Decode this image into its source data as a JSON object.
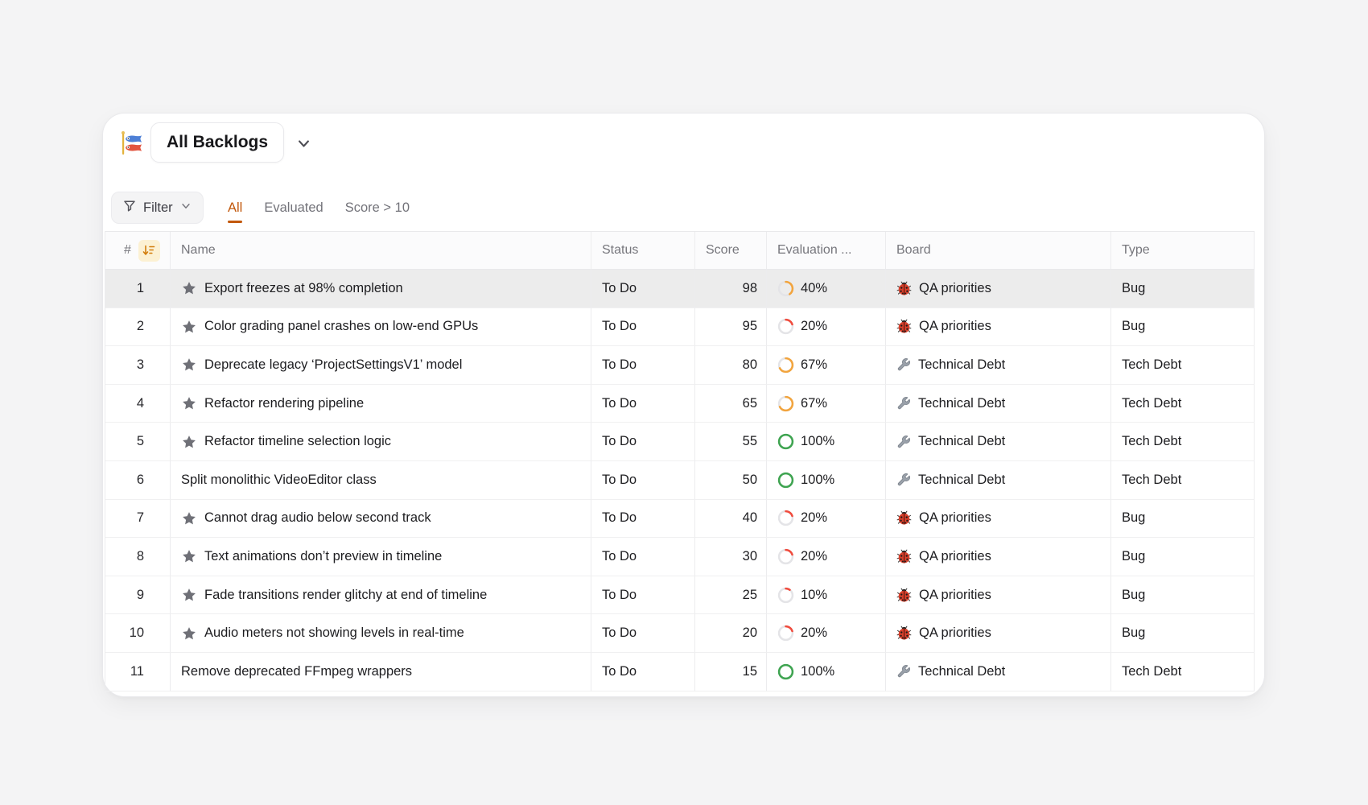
{
  "header": {
    "icon": "carp-streamer-icon",
    "title": "All Backlogs"
  },
  "filter_bar": {
    "filter_label": "Filter",
    "tabs": [
      {
        "label": "All",
        "active": true
      },
      {
        "label": "Evaluated",
        "active": false
      },
      {
        "label": "Score > 10",
        "active": false
      }
    ]
  },
  "table": {
    "columns": [
      {
        "label": "#",
        "sort_icon": "sort-descending-icon"
      },
      {
        "label": "Name"
      },
      {
        "label": "Status"
      },
      {
        "label": "Score"
      },
      {
        "label": "Evaluation ..."
      },
      {
        "label": "Board"
      },
      {
        "label": "Type"
      }
    ],
    "rows": [
      {
        "num": 1,
        "starred": true,
        "name": "Export freezes at 98% completion",
        "status": "To Do",
        "score": 98,
        "evaluation_pct": 40,
        "eval_color": "#F2A43D",
        "board": {
          "icon": "ladybug-icon",
          "label": "QA priorities"
        },
        "type": "Bug",
        "highlighted": true
      },
      {
        "num": 2,
        "starred": true,
        "name": "Color grading panel crashes on low-end GPUs",
        "status": "To Do",
        "score": 95,
        "evaluation_pct": 20,
        "eval_color": "#F04B3D",
        "board": {
          "icon": "ladybug-icon",
          "label": "QA priorities"
        },
        "type": "Bug",
        "highlighted": false
      },
      {
        "num": 3,
        "starred": true,
        "name": "Deprecate legacy ‘ProjectSettingsV1’ model",
        "status": "To Do",
        "score": 80,
        "evaluation_pct": 67,
        "eval_color": "#F2A43D",
        "board": {
          "icon": "wrench-icon",
          "label": "Technical Debt"
        },
        "type": "Tech Debt",
        "highlighted": false
      },
      {
        "num": 4,
        "starred": true,
        "name": "Refactor rendering pipeline",
        "status": "To Do",
        "score": 65,
        "evaluation_pct": 67,
        "eval_color": "#F2A43D",
        "board": {
          "icon": "wrench-icon",
          "label": "Technical Debt"
        },
        "type": "Tech Debt",
        "highlighted": false
      },
      {
        "num": 5,
        "starred": true,
        "name": "Refactor timeline selection logic",
        "status": "To Do",
        "score": 55,
        "evaluation_pct": 100,
        "eval_color": "#3EA450",
        "board": {
          "icon": "wrench-icon",
          "label": "Technical Debt"
        },
        "type": "Tech Debt",
        "highlighted": false
      },
      {
        "num": 6,
        "starred": false,
        "name": "Split monolithic VideoEditor class",
        "status": "To Do",
        "score": 50,
        "evaluation_pct": 100,
        "eval_color": "#3EA450",
        "board": {
          "icon": "wrench-icon",
          "label": "Technical Debt"
        },
        "type": "Tech Debt",
        "highlighted": false
      },
      {
        "num": 7,
        "starred": true,
        "name": "Cannot drag audio below second track",
        "status": "To Do",
        "score": 40,
        "evaluation_pct": 20,
        "eval_color": "#F04B3D",
        "board": {
          "icon": "ladybug-icon",
          "label": "QA priorities"
        },
        "type": "Bug",
        "highlighted": false
      },
      {
        "num": 8,
        "starred": true,
        "name": "Text animations don’t preview in timeline",
        "status": "To Do",
        "score": 30,
        "evaluation_pct": 20,
        "eval_color": "#F04B3D",
        "board": {
          "icon": "ladybug-icon",
          "label": "QA priorities"
        },
        "type": "Bug",
        "highlighted": false
      },
      {
        "num": 9,
        "starred": true,
        "name": "Fade transitions render glitchy at end of timeline",
        "status": "To Do",
        "score": 25,
        "evaluation_pct": 10,
        "eval_color": "#F04B3D",
        "board": {
          "icon": "ladybug-icon",
          "label": "QA priorities"
        },
        "type": "Bug",
        "highlighted": false
      },
      {
        "num": 10,
        "starred": true,
        "name": "Audio meters not showing levels in real-time",
        "status": "To Do",
        "score": 20,
        "evaluation_pct": 20,
        "eval_color": "#F04B3D",
        "board": {
          "icon": "ladybug-icon",
          "label": "QA priorities"
        },
        "type": "Bug",
        "highlighted": false
      },
      {
        "num": 11,
        "starred": false,
        "name": "Remove deprecated FFmpeg wrappers",
        "status": "To Do",
        "score": 15,
        "evaluation_pct": 100,
        "eval_color": "#3EA450",
        "board": {
          "icon": "wrench-icon",
          "label": "Technical Debt"
        },
        "type": "Tech Debt",
        "highlighted": false
      }
    ]
  },
  "colors": {
    "page_background": "#F4F4F5",
    "card_background": "#FFFFFF",
    "row_highlight": "#ECECEC",
    "tab_active": "#C2580C",
    "eval_orange": "#F2A43D",
    "eval_red": "#F04B3D",
    "eval_green": "#3EA450",
    "eval_track": "#E4E4E7",
    "sort_badge_bg": "#FCF1D3",
    "sort_badge_glyph": "#D27D0C"
  }
}
